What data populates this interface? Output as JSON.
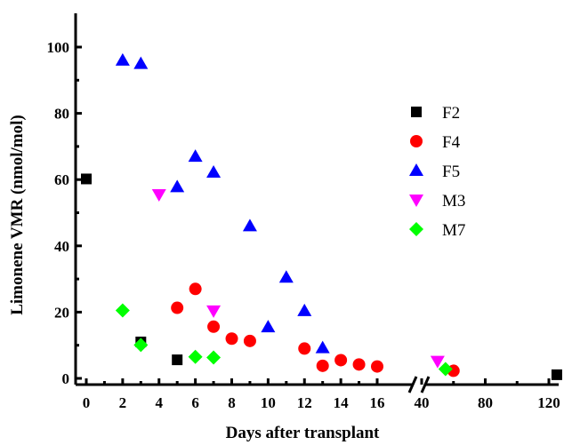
{
  "chart_data": {
    "type": "scatter",
    "title": "",
    "xlabel": "Days after transplant",
    "ylabel": "Limonene VMR (nmol/mol)",
    "ylim": [
      0,
      105
    ],
    "y_ticks": [
      0,
      20,
      40,
      60,
      80,
      100
    ],
    "x_axis": {
      "broken": true,
      "segments": [
        {
          "range": [
            0,
            16
          ],
          "ticks": [
            "0",
            "2",
            "4",
            "6",
            "8",
            "10",
            "12",
            "14",
            "16"
          ]
        },
        {
          "range": [
            40,
            125
          ],
          "ticks": [
            "40",
            "80",
            "120"
          ]
        }
      ]
    },
    "legend_position": "right",
    "grid": false,
    "series": [
      {
        "name": "F2",
        "marker": "square",
        "color": "#000000",
        "points": [
          [
            0,
            60.2
          ],
          [
            3,
            11
          ],
          [
            5,
            5.6
          ],
          [
            125,
            1.1
          ]
        ]
      },
      {
        "name": "F4",
        "marker": "circle",
        "color": "#ff0000",
        "points": [
          [
            5,
            21.3
          ],
          [
            6,
            27
          ],
          [
            7,
            15.6
          ],
          [
            8,
            12
          ],
          [
            9,
            11.3
          ],
          [
            12,
            9
          ],
          [
            13,
            3.8
          ],
          [
            14,
            5.5
          ],
          [
            15,
            4.2
          ],
          [
            16,
            3.6
          ],
          [
            60,
            2.3
          ]
        ]
      },
      {
        "name": "F5",
        "marker": "triangle-up",
        "color": "#0000ff",
        "points": [
          [
            2,
            96
          ],
          [
            3,
            95
          ],
          [
            5,
            57.8
          ],
          [
            6,
            67
          ],
          [
            7,
            62.2
          ],
          [
            9,
            46
          ],
          [
            10,
            15.5
          ],
          [
            11,
            30.5
          ],
          [
            12,
            20.4
          ],
          [
            13,
            9.2
          ]
        ]
      },
      {
        "name": "M3",
        "marker": "triangle-down",
        "color": "#ff00ff",
        "points": [
          [
            4,
            55.5
          ],
          [
            7,
            20.4
          ],
          [
            50,
            5.2
          ]
        ]
      },
      {
        "name": "M7",
        "marker": "diamond",
        "color": "#00ff00",
        "points": [
          [
            2,
            20.5
          ],
          [
            3,
            10.1
          ],
          [
            6,
            6.5
          ],
          [
            7,
            6.3
          ],
          [
            55,
            2.8
          ]
        ]
      }
    ]
  }
}
